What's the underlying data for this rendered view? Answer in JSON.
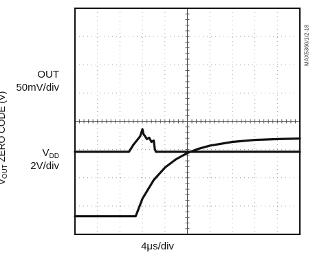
{
  "chart_data": {
    "type": "line",
    "title": "",
    "xlabel": "4μs/div",
    "ylabel": "V_OUT ZERO CODE (V)",
    "figure_code": "MAX5360/1/2-18",
    "grid": true,
    "divisions": {
      "x": 10,
      "y": 8
    },
    "series": [
      {
        "name": "OUT",
        "scale_label": "50mV/div",
        "unit": "div",
        "x": [
          0.0,
          2.4,
          2.6,
          2.8,
          2.9,
          3.0,
          3.05,
          3.12,
          3.2,
          3.3,
          3.4,
          3.5,
          3.55,
          3.6,
          3.65,
          3.7,
          3.75,
          3.8,
          10.0
        ],
        "y": [
          0.0,
          0.0,
          0.25,
          0.45,
          0.55,
          0.8,
          0.62,
          0.55,
          0.45,
          0.5,
          0.35,
          0.4,
          0.1,
          0.0,
          0.0,
          0.0,
          0.0,
          0.0,
          0.0
        ]
      },
      {
        "name": "VDD",
        "name_main": "V",
        "name_sub": "DD",
        "scale_label": "2V/div",
        "unit": "div",
        "x": [
          0.0,
          2.7,
          3.0,
          3.5,
          4.0,
          4.5,
          5.0,
          5.5,
          6.0,
          7.0,
          8.0,
          9.0,
          10.0
        ],
        "y": [
          0.0,
          0.0,
          0.62,
          1.28,
          1.72,
          2.02,
          2.24,
          2.39,
          2.5,
          2.63,
          2.7,
          2.73,
          2.75
        ]
      }
    ]
  },
  "labels": {
    "out_name": "OUT",
    "out_scale": "50mV/div",
    "vdd_main": "V",
    "vdd_sub": "DD",
    "vdd_scale": "2V/div",
    "x_scale": "4μs/div",
    "y_main": "V",
    "y_sub": "OUT",
    "y_rest": " ZERO CODE (V)",
    "code": "MAX5360/1/2-18"
  }
}
